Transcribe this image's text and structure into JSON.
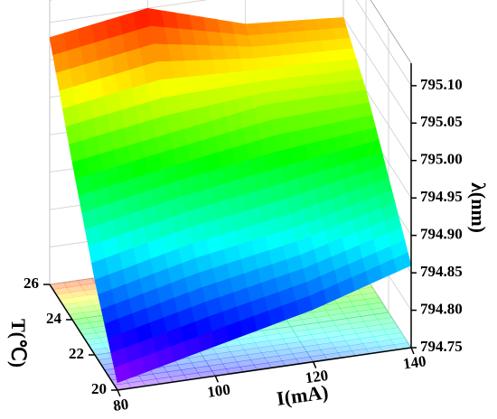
{
  "chart_data": {
    "type": "surface3d",
    "x_label": "I(mA)",
    "y_label": "T(℃)",
    "z_label": "λ(nm)",
    "x": [
      80,
      100,
      120,
      140
    ],
    "y": [
      20,
      22,
      24,
      26
    ],
    "z": [
      [
        794.76,
        794.79,
        794.82,
        794.86
      ],
      [
        794.85,
        794.88,
        794.9,
        794.93
      ],
      [
        794.96,
        794.98,
        795.0,
        795.0
      ],
      [
        795.08,
        795.1,
        795.06,
        795.05
      ]
    ],
    "xlim": [
      80,
      140
    ],
    "xticks": [
      80,
      100,
      120,
      140
    ],
    "ylim": [
      20,
      26
    ],
    "yticks": [
      20,
      22,
      24,
      26
    ],
    "zlim": [
      794.75,
      795.13
    ],
    "zticks": [
      794.75,
      {
        "value": 794.8,
        "label": "794.80"
      },
      794.85,
      {
        "value": 794.9,
        "label": "794.90"
      },
      794.95,
      {
        "value": 795.0,
        "label": "795.00"
      },
      795.05,
      {
        "value": 795.1,
        "label": "795.10"
      }
    ],
    "colormap": "rainbow",
    "floor_projection": true,
    "grid": true
  }
}
